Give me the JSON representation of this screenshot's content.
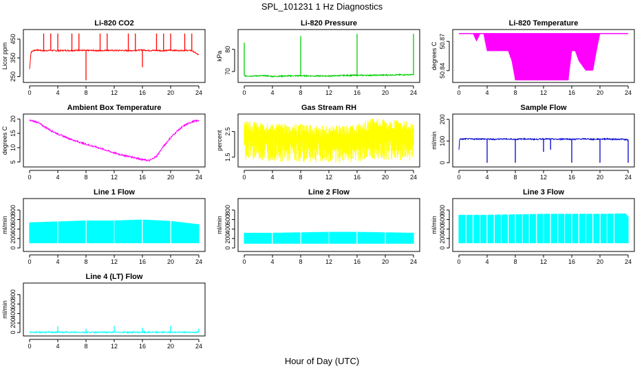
{
  "title": "SPL_101231  1 Hz Diagnostics",
  "xlabel": "Hour of Day (UTC)",
  "chart_data": [
    {
      "type": "line",
      "title": "Li-820 CO2",
      "ylabel": "Licor ppm",
      "color": "#ff0000",
      "x": [
        0,
        0.2,
        0.6,
        1,
        2,
        3,
        4,
        5,
        6,
        7,
        8,
        9,
        10,
        11,
        12,
        13,
        14,
        15,
        16,
        17,
        18,
        19,
        20,
        21,
        22,
        23,
        24
      ],
      "values": [
        290,
        380,
        390,
        392,
        388,
        390,
        388,
        390,
        389,
        391,
        389,
        390,
        388,
        391,
        389,
        390,
        388,
        390,
        392,
        389,
        390,
        388,
        391,
        389,
        390,
        389,
        365
      ],
      "spike_x": [
        2,
        3,
        4,
        6,
        7,
        10,
        11,
        14,
        15,
        18,
        19,
        20,
        22,
        23
      ],
      "spike_top": 480,
      "dip_x": [
        8,
        16
      ],
      "dip_values": [
        230,
        300
      ],
      "xticks": [
        0,
        4,
        8,
        12,
        16,
        20,
        24
      ],
      "xlim": [
        0,
        24
      ],
      "yticks": [
        250,
        350,
        450
      ],
      "ylim": [
        230,
        490
      ]
    },
    {
      "type": "line",
      "title": "Li-820 Pressure",
      "ylabel": "kPa",
      "color": "#00cc00",
      "x": [
        0,
        0.2,
        1,
        3,
        4,
        6,
        8,
        10,
        12,
        14,
        16,
        18,
        20,
        22,
        24
      ],
      "values": [
        68.2,
        68.0,
        68.0,
        68.1,
        67.8,
        68.0,
        68.1,
        68.0,
        68.0,
        68.2,
        68.3,
        68.3,
        68.4,
        68.5,
        68.6
      ],
      "spike_x": [
        0,
        8,
        16,
        24
      ],
      "spike_values": [
        83,
        86,
        87,
        87
      ],
      "xticks": [
        0,
        4,
        8,
        12,
        16,
        20,
        24
      ],
      "xlim": [
        0,
        24
      ],
      "yticks": [
        70,
        80
      ],
      "ylim": [
        66,
        88
      ]
    },
    {
      "type": "area",
      "title": "Li-820 Temperature",
      "ylabel": "degrees C",
      "color": "#ff00ff",
      "x": [
        0,
        1,
        2,
        2.5,
        3,
        3.5,
        4,
        5,
        6,
        7,
        7.5,
        8,
        9,
        10,
        11,
        12,
        13,
        14,
        15,
        15.5,
        16,
        16.5,
        17,
        18,
        19,
        19.5,
        20,
        21,
        22,
        23,
        24
      ],
      "upper": [
        50.878,
        50.878,
        50.878,
        50.878,
        50.878,
        50.878,
        50.878,
        50.878,
        50.878,
        50.878,
        50.878,
        50.878,
        50.878,
        50.878,
        50.878,
        50.878,
        50.878,
        50.878,
        50.878,
        50.878,
        50.878,
        50.878,
        50.878,
        50.878,
        50.878,
        50.878,
        50.878,
        50.878,
        50.878,
        50.878,
        50.878
      ],
      "lower": [
        50.878,
        50.878,
        50.878,
        50.87,
        50.878,
        50.878,
        50.86,
        50.86,
        50.86,
        50.86,
        50.85,
        50.83,
        50.83,
        50.83,
        50.83,
        50.83,
        50.83,
        50.83,
        50.83,
        50.83,
        50.86,
        50.86,
        50.85,
        50.84,
        50.84,
        50.86,
        50.878,
        50.878,
        50.878,
        50.878,
        50.878
      ],
      "xticks": [
        0,
        4,
        8,
        12,
        16,
        20,
        24
      ],
      "xlim": [
        0,
        24
      ],
      "yticks": [
        50.84,
        50.87
      ],
      "ylim": [
        50.83,
        50.88
      ]
    },
    {
      "type": "line",
      "title": "Ambient Box Temperature",
      "ylabel": "degrees C",
      "color": "#ff00ff",
      "x": [
        0,
        1,
        2,
        3,
        4,
        5,
        6,
        7,
        8,
        9,
        10,
        11,
        12,
        13,
        14,
        15,
        16,
        17,
        18,
        19,
        20,
        21,
        22,
        23,
        24
      ],
      "values": [
        19.5,
        19.0,
        17.5,
        16.0,
        14.8,
        13.8,
        12.8,
        12.0,
        11.2,
        10.5,
        9.8,
        9.0,
        8.2,
        7.5,
        7.0,
        6.5,
        5.8,
        5.5,
        7.0,
        10.5,
        13.5,
        16.0,
        17.8,
        19.0,
        19.5
      ],
      "xticks": [
        0,
        4,
        8,
        12,
        16,
        20,
        24
      ],
      "xlim": [
        0,
        24
      ],
      "yticks": [
        5,
        10,
        15,
        20
      ],
      "ylim": [
        4,
        21
      ]
    },
    {
      "type": "area",
      "title": "Gas Stream RH",
      "ylabel": "percent",
      "color": "#ffff00",
      "x": [
        0,
        2,
        4,
        6,
        8,
        10,
        12,
        14,
        16,
        17,
        18,
        20,
        22,
        24
      ],
      "upper": [
        2.95,
        2.85,
        2.8,
        2.8,
        2.8,
        2.75,
        2.75,
        2.75,
        2.8,
        2.95,
        3.0,
        3.0,
        2.95,
        2.9
      ],
      "lower": [
        1.4,
        1.35,
        1.35,
        1.3,
        1.3,
        1.3,
        1.25,
        1.25,
        1.3,
        1.35,
        1.4,
        1.4,
        1.35,
        1.35
      ],
      "xticks": [
        0,
        4,
        8,
        12,
        16,
        20,
        24
      ],
      "xlim": [
        0,
        24
      ],
      "yticks": [
        1.5,
        2.5
      ],
      "ylim": [
        1.2,
        3.1
      ]
    },
    {
      "type": "line",
      "title": "Sample Flow",
      "ylabel": "ml/min",
      "color": "#0000cc",
      "x": [
        0,
        0.1,
        1,
        2,
        3,
        4,
        5,
        6,
        7,
        8,
        9,
        10,
        11,
        12,
        13,
        14,
        15,
        16,
        17,
        18,
        19,
        20,
        21,
        22,
        23,
        24
      ],
      "values": [
        60,
        108,
        110,
        109,
        110,
        109,
        108,
        110,
        109,
        108,
        110,
        109,
        108,
        110,
        109,
        108,
        110,
        108,
        109,
        110,
        108,
        109,
        110,
        108,
        109,
        105
      ],
      "dip_x": [
        4,
        8,
        12,
        13,
        16,
        20,
        24
      ],
      "dip_values": [
        0,
        0,
        50,
        60,
        0,
        0,
        0
      ],
      "xticks": [
        0,
        4,
        8,
        12,
        16,
        20,
        24
      ],
      "xlim": [
        0,
        24
      ],
      "yticks": [
        0,
        100,
        200
      ],
      "ylim": [
        -10,
        215
      ]
    },
    {
      "type": "area",
      "title": "Line 1 Flow",
      "ylabel": "ml/min",
      "color": "#00ffff",
      "x": [
        0,
        4,
        8,
        12,
        16,
        20,
        24
      ],
      "upper": [
        540,
        560,
        580,
        580,
        600,
        570,
        500
      ],
      "lower": [
        100,
        100,
        100,
        100,
        100,
        100,
        100
      ],
      "gap_x": [
        4,
        8,
        12,
        16,
        20
      ],
      "xticks": [
        0,
        4,
        8,
        12,
        16,
        20,
        24
      ],
      "xlim": [
        0,
        24
      ],
      "yticks": [
        0,
        200,
        400,
        600,
        800
      ],
      "ylim": [
        -30,
        1000
      ]
    },
    {
      "type": "area",
      "title": "Line 2 Flow",
      "ylabel": "ml/min",
      "color": "#00ffff",
      "x": [
        0,
        4,
        8,
        12,
        16,
        20,
        24
      ],
      "upper": [
        320,
        320,
        330,
        340,
        340,
        330,
        320
      ],
      "lower": [
        90,
        90,
        90,
        90,
        90,
        90,
        90
      ],
      "gap_x": [
        4,
        8,
        12,
        16,
        20
      ],
      "xticks": [
        0,
        4,
        8,
        12,
        16,
        20,
        24
      ],
      "xlim": [
        0,
        24
      ],
      "yticks": [
        0,
        200,
        400,
        600,
        800
      ],
      "ylim": [
        -30,
        1000
      ]
    },
    {
      "type": "area",
      "title": "Line 3 Flow",
      "ylabel": "ml/min",
      "color": "#00ffff",
      "x": [
        0,
        4,
        8,
        12,
        16,
        20,
        23.6,
        24
      ],
      "upper": [
        700,
        700,
        710,
        720,
        720,
        720,
        730,
        660
      ],
      "lower": [
        100,
        100,
        100,
        100,
        100,
        100,
        100,
        100
      ],
      "gap_x": [
        1,
        2,
        3,
        4,
        5,
        6,
        7,
        8,
        9,
        10,
        11,
        12,
        13,
        14,
        15,
        16,
        17,
        18,
        19,
        20,
        21,
        22
      ],
      "xticks": [
        0,
        4,
        8,
        12,
        16,
        20,
        24
      ],
      "xlim": [
        0,
        24
      ],
      "yticks": [
        0,
        200,
        400,
        600,
        800
      ],
      "ylim": [
        -30,
        1000
      ]
    },
    {
      "type": "line",
      "title": "Line 4 (LT) Flow",
      "ylabel": "ml/min",
      "color": "#00ffff",
      "x": [
        0,
        24
      ],
      "values": [
        5,
        5
      ],
      "spike_x": [
        4,
        8,
        12,
        16,
        20,
        24
      ],
      "spike_values": [
        130,
        80,
        140,
        100,
        140,
        80
      ],
      "xticks": [
        0,
        4,
        8,
        12,
        16,
        20,
        24
      ],
      "xlim": [
        0,
        24
      ],
      "yticks": [
        0,
        200,
        400,
        600,
        800
      ],
      "ylim": [
        -30,
        1000
      ]
    }
  ]
}
